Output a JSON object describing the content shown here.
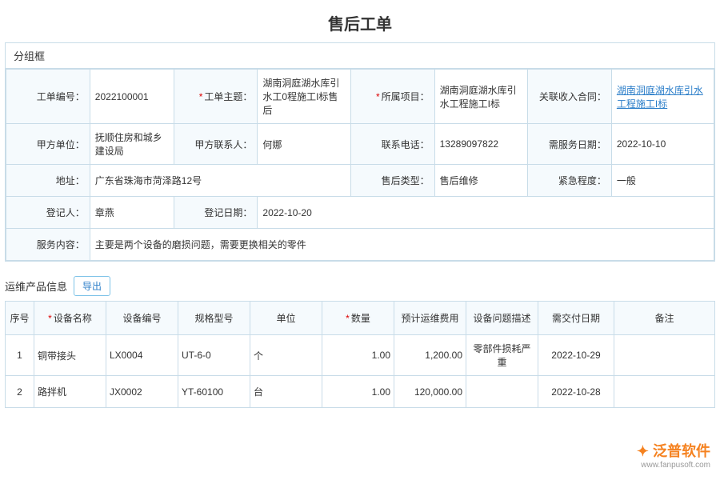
{
  "title": "售后工单",
  "group_title": "分组框",
  "form": {
    "labels": {
      "order_no": "工单编号：",
      "subject": "工单主题：",
      "project": "所属项目：",
      "contract": "关联收入合同：",
      "party_a": "甲方单位：",
      "contact": "甲方联系人：",
      "phone": "联系电话：",
      "service_date": "需服务日期：",
      "address": "地址：",
      "type": "售后类型：",
      "urgency": "紧急程度：",
      "registrant": "登记人：",
      "reg_date": "登记日期：",
      "content": "服务内容："
    },
    "order_no": "2022100001",
    "subject": "湖南洞庭湖水库引水工0程施工I标售后",
    "project": "湖南洞庭湖水库引水工程施工I标",
    "contract": "湖南洞庭湖水库引水工程施工I标",
    "party_a": "抚顺住房和城乡建设局",
    "contact": "何娜",
    "phone": "13289097822",
    "service_date": "2022-10-10",
    "address": "广东省珠海市菏泽路12号",
    "type": "售后维修",
    "urgency": "一般",
    "registrant": "章燕",
    "reg_date": "2022-10-20",
    "content": "主要是两个设备的磨损问题，需要更换相关的零件"
  },
  "products": {
    "section_title": "运维产品信息",
    "export_label": "导出",
    "columns": {
      "seq": "序号",
      "name": "设备名称",
      "code": "设备编号",
      "spec": "规格型号",
      "unit": "单位",
      "qty": "数量",
      "cost": "预计运维费用",
      "issue": "设备问题描述",
      "due": "需交付日期",
      "remark": "备注"
    },
    "rows": [
      {
        "seq": "1",
        "name": "铜带接头",
        "code": "LX0004",
        "spec": "UT-6-0",
        "unit": "个",
        "qty": "1.00",
        "cost": "1,200.00",
        "issue": "零部件损耗严重",
        "due": "2022-10-29",
        "remark": ""
      },
      {
        "seq": "2",
        "name": "路拌机",
        "code": "JX0002",
        "spec": "YT-60100",
        "unit": "台",
        "qty": "1.00",
        "cost": "120,000.00",
        "issue": "",
        "due": "2022-10-28",
        "remark": ""
      }
    ]
  },
  "watermark": {
    "brand": "泛普软件",
    "url": "www.fanpusoft.com"
  }
}
